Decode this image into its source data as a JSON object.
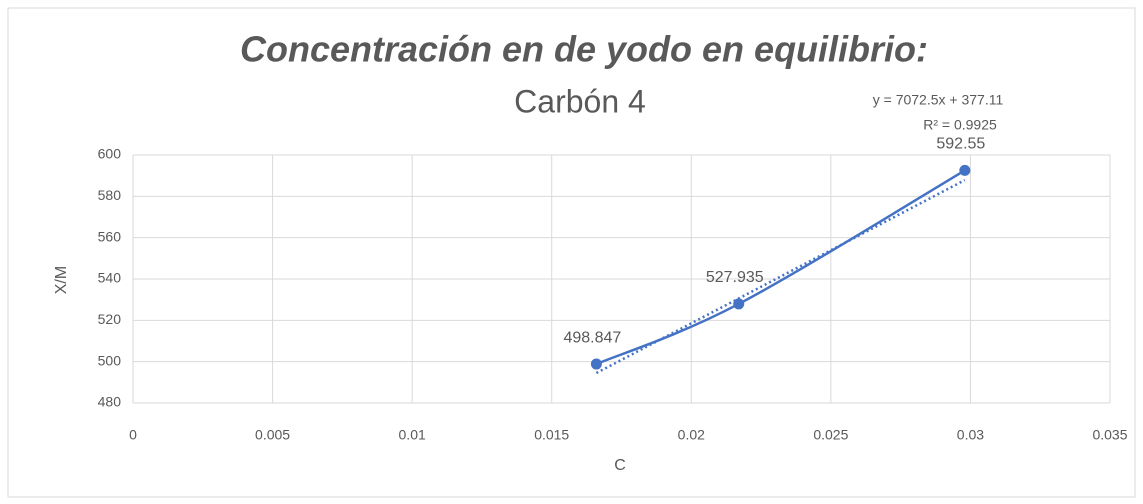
{
  "chart_data": {
    "type": "scatter",
    "title": "Concentración en de yodo en equilibrio:",
    "subtitle": "Carbón 4",
    "xlabel": "C",
    "ylabel": "X/M",
    "series": [
      {
        "name": "X/M",
        "color": "#4472c4",
        "x": [
          0.0166,
          0.0217,
          0.0298
        ],
        "values": [
          498.847,
          527.935,
          592.55
        ],
        "value_labels": [
          "498.847",
          "527.935",
          "592.55"
        ]
      }
    ],
    "trendline": {
      "slope": 7072.5,
      "intercept": 377.11,
      "label": "y = 7072.5x + 377.11",
      "r2_label": "R² = 0.9925"
    },
    "xlim": [
      0,
      0.035
    ],
    "xticks": [
      0,
      0.005,
      0.01,
      0.015,
      0.02,
      0.025,
      0.03,
      0.035
    ],
    "ylim": [
      480,
      600
    ],
    "yticks": [
      480,
      500,
      520,
      540,
      560,
      580,
      600
    ],
    "grid": true
  }
}
